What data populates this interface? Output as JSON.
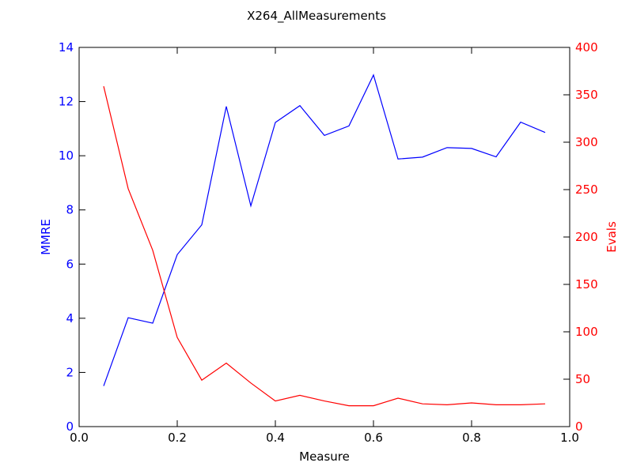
{
  "chart_data": {
    "type": "line",
    "title": "X264_AllMeasurements",
    "xlabel": "Measure",
    "ylabel_left": "MMRE",
    "ylabel_right": "Evals",
    "xlim": [
      0.0,
      1.0
    ],
    "ylim_left": [
      0,
      14
    ],
    "ylim_right": [
      0,
      400
    ],
    "x_ticks": [
      "0.0",
      "0.2",
      "0.4",
      "0.6",
      "0.8",
      "1.0"
    ],
    "y_left_ticks": [
      "0",
      "2",
      "4",
      "6",
      "8",
      "10",
      "12",
      "14"
    ],
    "y_right_ticks": [
      "0",
      "50",
      "100",
      "150",
      "200",
      "250",
      "300",
      "350",
      "400"
    ],
    "grid": false,
    "colors": {
      "left": "#0000ff",
      "right": "#ff0000"
    },
    "x": [
      0.05,
      0.1,
      0.15,
      0.2,
      0.25,
      0.3,
      0.35,
      0.4,
      0.45,
      0.5,
      0.55,
      0.6,
      0.65,
      0.7,
      0.75,
      0.8,
      0.85,
      0.9,
      0.95
    ],
    "series": [
      {
        "axis": "left",
        "values": [
          1.5,
          4.02,
          3.82,
          6.35,
          7.45,
          11.82,
          8.15,
          11.23,
          11.85,
          10.75,
          11.1,
          12.98,
          9.88,
          9.95,
          10.3,
          10.27,
          9.96,
          11.24,
          10.86
        ]
      },
      {
        "axis": "right",
        "values": [
          359,
          251,
          186,
          94,
          49,
          67,
          46,
          27,
          33,
          27,
          22,
          22,
          30,
          24,
          23,
          25,
          23,
          23,
          24
        ]
      }
    ]
  }
}
